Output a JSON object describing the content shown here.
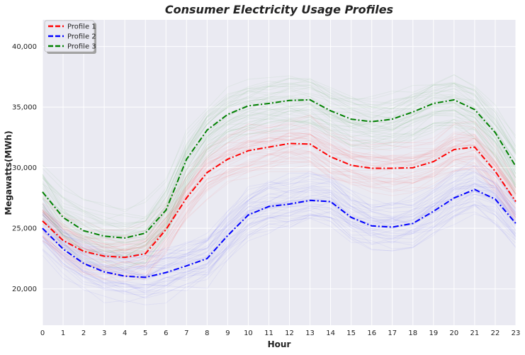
{
  "chart_data": {
    "type": "line",
    "title": "Consumer Electricity Usage Profiles",
    "xlabel": "Hour",
    "ylabel": "Megawatts(MWh)",
    "x": [
      0,
      1,
      2,
      3,
      4,
      5,
      6,
      7,
      8,
      9,
      10,
      11,
      12,
      13,
      14,
      15,
      16,
      17,
      18,
      19,
      20,
      21,
      22,
      23
    ],
    "xlim": [
      0,
      23
    ],
    "ylim": [
      17000,
      42200
    ],
    "yticks": [
      20000,
      25000,
      30000,
      35000,
      40000
    ],
    "ytick_labels": [
      "20,000",
      "25,000",
      "30,000",
      "35,000",
      "40,000"
    ],
    "xtick_labels": [
      "0",
      "1",
      "2",
      "3",
      "4",
      "5",
      "6",
      "7",
      "8",
      "9",
      "10",
      "11",
      "12",
      "13",
      "14",
      "15",
      "16",
      "17",
      "18",
      "19",
      "20",
      "21",
      "22",
      "23"
    ],
    "grid": true,
    "legend_position": "top-left",
    "series": [
      {
        "name": "Profile 1",
        "color": "#ff0000",
        "values": [
          25600,
          24000,
          23100,
          22700,
          22600,
          22900,
          24900,
          27500,
          29600,
          30700,
          31400,
          31700,
          32000,
          31950,
          30900,
          30200,
          29950,
          29950,
          30000,
          30500,
          31500,
          31700,
          29700,
          27200
        ]
      },
      {
        "name": "Profile 2",
        "color": "#0000ff",
        "values": [
          25000,
          23300,
          22100,
          21400,
          21050,
          20950,
          21350,
          21900,
          22500,
          24400,
          26100,
          26800,
          27000,
          27300,
          27200,
          25900,
          25200,
          25100,
          25400,
          26400,
          27500,
          28200,
          27400,
          25400
        ]
      },
      {
        "name": "Profile 3",
        "color": "#008000",
        "values": [
          28000,
          25900,
          24800,
          24350,
          24200,
          24600,
          26500,
          30700,
          33100,
          34400,
          35100,
          35300,
          35550,
          35600,
          34700,
          34000,
          33800,
          34000,
          34600,
          35300,
          35600,
          34800,
          32900,
          30100
        ]
      }
    ]
  }
}
